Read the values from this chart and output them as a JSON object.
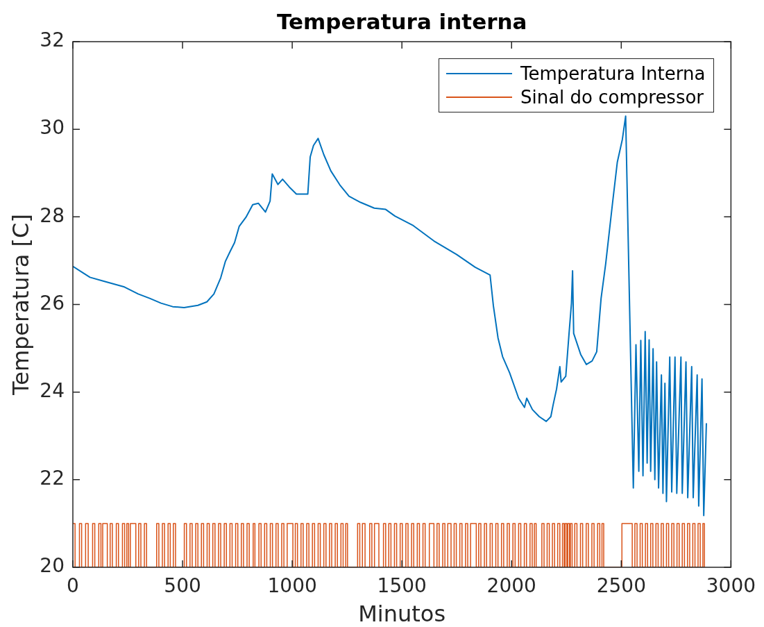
{
  "chart_data": {
    "type": "line",
    "title": "Temperatura interna",
    "xlabel": "Minutos",
    "ylabel": "Temperatura [C]",
    "xlim": [
      0,
      3000
    ],
    "xticks": [
      0,
      500,
      1000,
      1500,
      2000,
      2500,
      3000
    ],
    "ylim": [
      20,
      32
    ],
    "yticks": [
      20,
      22,
      24,
      26,
      28,
      30,
      32
    ],
    "legend": "top right",
    "series": [
      {
        "name": "Temperatura Interna",
        "color": "#0072bd",
        "x": [
          0,
          47,
          78,
          141,
          235,
          298,
          350,
          402,
          455,
          507,
          570,
          611,
          643,
          674,
          695,
          716,
          737,
          758,
          789,
          820,
          846,
          878,
          899,
          909,
          935,
          956,
          987,
          1019,
          1071,
          1082,
          1097,
          1118,
          1144,
          1176,
          1217,
          1259,
          1312,
          1374,
          1426,
          1468,
          1552,
          1646,
          1750,
          1834,
          1902,
          1917,
          1938,
          1959,
          1991,
          2032,
          2059,
          2069,
          2095,
          2126,
          2158,
          2179,
          2189,
          2205,
          2220,
          2226,
          2247,
          2262,
          2273,
          2278,
          2283,
          2315,
          2341,
          2367,
          2388,
          2408,
          2429,
          2461,
          2482,
          2505,
          2520,
          2555,
          2567,
          2580,
          2589,
          2599,
          2609,
          2618,
          2627,
          2634,
          2645,
          2653,
          2661,
          2670,
          2683,
          2690,
          2699,
          2706,
          2721,
          2730,
          2745,
          2753,
          2772,
          2778,
          2795,
          2803,
          2821,
          2828,
          2846,
          2853,
          2868,
          2876,
          2888
        ],
        "values": [
          26.87,
          26.72,
          26.62,
          26.53,
          26.4,
          26.24,
          26.14,
          26.03,
          25.95,
          25.93,
          25.98,
          26.06,
          26.24,
          26.61,
          26.98,
          27.2,
          27.41,
          27.78,
          27.99,
          28.28,
          28.31,
          28.11,
          28.36,
          28.98,
          28.74,
          28.86,
          28.68,
          28.52,
          28.52,
          29.37,
          29.63,
          29.79,
          29.42,
          29.05,
          28.73,
          28.47,
          28.33,
          28.2,
          28.17,
          28.02,
          27.8,
          27.45,
          27.14,
          26.85,
          26.67,
          25.97,
          25.24,
          24.81,
          24.44,
          23.86,
          23.65,
          23.86,
          23.6,
          23.44,
          23.33,
          23.44,
          23.7,
          24.07,
          24.58,
          24.23,
          24.36,
          25.34,
          26.03,
          26.77,
          25.34,
          24.86,
          24.63,
          24.71,
          24.92,
          26.14,
          26.93,
          28.35,
          29.25,
          29.77,
          30.3,
          21.81,
          25.08,
          22.19,
          25.18,
          22.09,
          25.38,
          22.38,
          25.19,
          22.19,
          24.99,
          22.0,
          24.69,
          21.81,
          24.39,
          21.69,
          24.2,
          21.5,
          24.8,
          21.72,
          24.8,
          21.69,
          24.8,
          21.69,
          24.69,
          21.59,
          24.58,
          21.59,
          24.39,
          21.4,
          24.3,
          21.18,
          23.29
        ]
      },
      {
        "name": "Sinal do compressor",
        "color": "#d95319",
        "type": "step",
        "x": [
          0,
          10,
          30,
          40,
          58,
          70,
          90,
          100,
          118,
          128,
          136,
          157,
          170,
          180,
          198,
          208,
          226,
          236,
          246,
          254,
          262,
          287,
          300,
          310,
          326,
          336,
          382,
          392,
          408,
          418,
          434,
          444,
          458,
          468,
          508,
          518,
          534,
          544,
          560,
          570,
          586,
          596,
          612,
          622,
          638,
          648,
          664,
          674,
          690,
          700,
          716,
          726,
          742,
          752,
          768,
          778,
          794,
          804,
          822,
          830,
          848,
          858,
          874,
          884,
          900,
          910,
          926,
          936,
          952,
          962,
          977,
          1003,
          1014,
          1024,
          1040,
          1050,
          1066,
          1076,
          1092,
          1102,
          1118,
          1128,
          1144,
          1154,
          1170,
          1180,
          1196,
          1206,
          1222,
          1232,
          1244,
          1252,
          1298,
          1308,
          1320,
          1332,
          1353,
          1363,
          1375,
          1395,
          1416,
          1426,
          1440,
          1450,
          1466,
          1476,
          1492,
          1502,
          1518,
          1528,
          1544,
          1554,
          1570,
          1580,
          1596,
          1606,
          1625,
          1646,
          1660,
          1670,
          1686,
          1696,
          1709,
          1724,
          1738,
          1748,
          1764,
          1774,
          1790,
          1800,
          1813,
          1839,
          1850,
          1860,
          1876,
          1886,
          1902,
          1912,
          1928,
          1938,
          1954,
          1964,
          1980,
          1990,
          2006,
          2016,
          2032,
          2042,
          2058,
          2068,
          2084,
          2094,
          2104,
          2112,
          2138,
          2148,
          2162,
          2172,
          2186,
          2196,
          2210,
          2220,
          2232,
          2240,
          2244,
          2252,
          2256,
          2264,
          2268,
          2276,
          2288,
          2298,
          2314,
          2324,
          2340,
          2350,
          2366,
          2376,
          2392,
          2402,
          2412,
          2420,
          2503,
          2550,
          2562,
          2572,
          2586,
          2596,
          2610,
          2620,
          2634,
          2644,
          2658,
          2668,
          2682,
          2692,
          2706,
          2716,
          2730,
          2740,
          2754,
          2764,
          2778,
          2788,
          2802,
          2812,
          2826,
          2836,
          2850,
          2860,
          2872,
          2879
        ],
        "values": [
          21,
          20,
          21,
          20,
          21,
          20,
          21,
          20,
          21,
          20,
          21,
          20,
          21,
          20,
          21,
          20,
          21,
          20,
          21,
          20,
          21,
          20,
          21,
          20,
          21,
          20,
          21,
          20,
          21,
          20,
          21,
          20,
          21,
          20,
          21,
          20,
          21,
          20,
          21,
          20,
          21,
          20,
          21,
          20,
          21,
          20,
          21,
          20,
          21,
          20,
          21,
          20,
          21,
          20,
          21,
          20,
          21,
          20,
          21,
          20,
          21,
          20,
          21,
          20,
          21,
          20,
          21,
          20,
          21,
          20,
          21,
          20,
          21,
          20,
          21,
          20,
          21,
          20,
          21,
          20,
          21,
          20,
          21,
          20,
          21,
          20,
          21,
          20,
          21,
          20,
          21,
          20,
          21,
          20,
          21,
          20,
          21,
          20,
          21,
          20,
          21,
          20,
          21,
          20,
          21,
          20,
          21,
          20,
          21,
          20,
          21,
          20,
          21,
          20,
          21,
          20,
          21,
          20,
          21,
          20,
          21,
          20,
          21,
          20,
          21,
          20,
          21,
          20,
          21,
          20,
          21,
          20,
          21,
          20,
          21,
          20,
          21,
          20,
          21,
          20,
          21,
          20,
          21,
          20,
          21,
          20,
          21,
          20,
          21,
          20,
          21,
          20,
          21,
          20,
          21,
          20,
          21,
          20,
          21,
          20,
          21,
          20,
          21,
          20,
          21,
          20,
          21,
          20,
          21,
          20,
          21,
          20,
          21,
          20,
          21,
          20,
          21,
          20,
          21,
          20,
          21,
          20,
          21,
          20,
          21,
          20,
          21,
          20,
          21,
          20,
          21,
          20,
          21,
          20,
          21,
          20,
          21,
          20,
          21,
          20,
          21,
          20,
          21,
          20,
          21,
          20,
          21,
          20,
          21,
          20,
          21,
          20
        ]
      }
    ]
  }
}
